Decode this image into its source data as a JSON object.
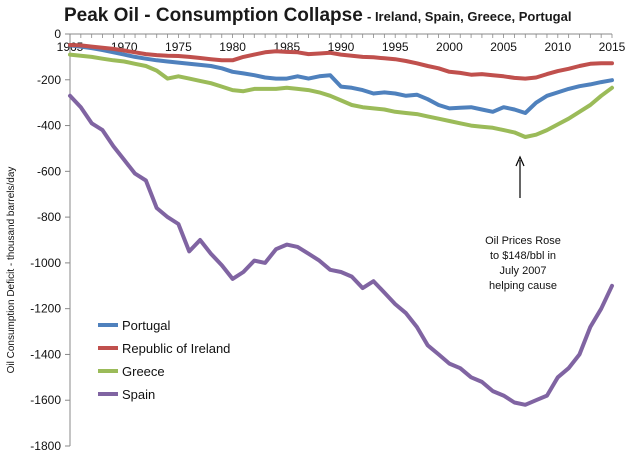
{
  "chart_data": {
    "type": "line",
    "title": "Peak Oil -  Consumption Collapse",
    "subtitle": "- Ireland, Spain, Greece, Portugal",
    "xlabel": "",
    "ylabel": "Oil  Consumption Deficit - thousand  barrels/day",
    "xlim": [
      1965,
      2015
    ],
    "ylim": [
      -1800,
      0
    ],
    "x_ticks": [
      1965,
      1970,
      1975,
      1980,
      1985,
      1990,
      1995,
      2000,
      2005,
      2010,
      2015
    ],
    "y_ticks": [
      0,
      -200,
      -400,
      -600,
      -800,
      -1000,
      -1200,
      -1400,
      -1600,
      -1800
    ],
    "grid": false,
    "legend_position": "bottom-left",
    "x": [
      1965,
      1966,
      1967,
      1968,
      1969,
      1970,
      1971,
      1972,
      1973,
      1974,
      1975,
      1976,
      1977,
      1978,
      1979,
      1980,
      1981,
      1982,
      1983,
      1984,
      1985,
      1986,
      1987,
      1988,
      1989,
      1990,
      1991,
      1992,
      1993,
      1994,
      1995,
      1996,
      1997,
      1998,
      1999,
      2000,
      2001,
      2002,
      2003,
      2004,
      2005,
      2006,
      2007,
      2008,
      2009,
      2010,
      2011,
      2012,
      2013,
      2014,
      2015
    ],
    "series": [
      {
        "name": "Portugal",
        "color": "#4f81bd",
        "values": [
          -50,
          -55,
          -62,
          -70,
          -80,
          -90,
          -100,
          -108,
          -115,
          -120,
          -125,
          -130,
          -135,
          -140,
          -150,
          -165,
          -172,
          -180,
          -190,
          -195,
          -195,
          -185,
          -195,
          -185,
          -180,
          -230,
          -235,
          -245,
          -260,
          -255,
          -260,
          -270,
          -265,
          -285,
          -310,
          -325,
          -322,
          -320,
          -330,
          -340,
          -320,
          -330,
          -345,
          -300,
          -270,
          -255,
          -240,
          -228,
          -220,
          -210,
          -202
        ]
      },
      {
        "name": "Republic of Ireland",
        "color": "#c0504d",
        "values": [
          -48,
          -50,
          -55,
          -60,
          -65,
          -72,
          -80,
          -88,
          -92,
          -95,
          -96,
          -100,
          -105,
          -110,
          -115,
          -115,
          -100,
          -90,
          -80,
          -75,
          -78,
          -80,
          -88,
          -85,
          -82,
          -90,
          -95,
          -100,
          -102,
          -106,
          -110,
          -118,
          -128,
          -140,
          -150,
          -165,
          -170,
          -178,
          -175,
          -180,
          -185,
          -192,
          -195,
          -190,
          -175,
          -162,
          -152,
          -140,
          -130,
          -128,
          -128
        ]
      },
      {
        "name": "Greece",
        "color": "#9bbb59",
        "values": [
          -90,
          -95,
          -100,
          -108,
          -115,
          -120,
          -130,
          -140,
          -160,
          -195,
          -185,
          -195,
          -205,
          -215,
          -230,
          -245,
          -250,
          -240,
          -240,
          -240,
          -235,
          -240,
          -245,
          -255,
          -270,
          -290,
          -310,
          -320,
          -325,
          -330,
          -340,
          -345,
          -350,
          -360,
          -370,
          -380,
          -390,
          -400,
          -405,
          -410,
          -420,
          -430,
          -450,
          -440,
          -420,
          -395,
          -370,
          -340,
          -310,
          -270,
          -235
        ]
      },
      {
        "name": "Spain",
        "color": "#8064a2",
        "values": [
          -270,
          -320,
          -390,
          -420,
          -490,
          -550,
          -610,
          -640,
          -760,
          -800,
          -830,
          -950,
          -900,
          -960,
          -1010,
          -1070,
          -1040,
          -990,
          -1000,
          -940,
          -920,
          -930,
          -960,
          -990,
          -1030,
          -1040,
          -1060,
          -1110,
          -1080,
          -1130,
          -1180,
          -1220,
          -1280,
          -1360,
          -1400,
          -1440,
          -1460,
          -1500,
          -1520,
          -1560,
          -1580,
          -1610,
          -1620,
          -1600,
          -1580,
          -1500,
          -1460,
          -1400,
          -1280,
          -1200,
          -1100
        ]
      }
    ],
    "annotation": {
      "lines": [
        "Oil Prices Rose",
        "to $148/bbl in",
        "July 2007",
        "helping cause"
      ],
      "arrow_to_year": 2007
    }
  }
}
